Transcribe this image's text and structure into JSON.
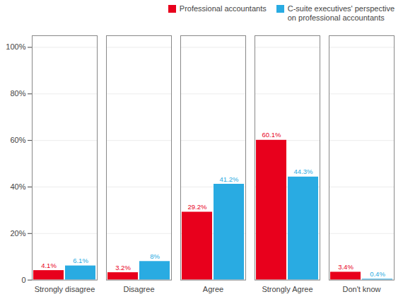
{
  "chart_data": {
    "type": "bar",
    "categories": [
      "Strongly disagree",
      "Disagree",
      "Agree",
      "Strongly Agree",
      "Don't know"
    ],
    "series": [
      {
        "name": "Professional accountants",
        "color": "#e8001c",
        "values": [
          4.1,
          3.2,
          29.2,
          60.1,
          3.4
        ],
        "value_labels": [
          "4.1%",
          "3.2%",
          "29.2%",
          "60.1%",
          "3.4%"
        ]
      },
      {
        "name": "C-suite executives' perspective\non professional accountants",
        "color": "#29abe2",
        "values": [
          6.1,
          8.0,
          41.2,
          44.3,
          0.4
        ],
        "value_labels": [
          "6.1%",
          "8%",
          "41.2%",
          "44.3%",
          "0.4%"
        ]
      }
    ],
    "ylim": [
      0,
      105
    ],
    "yticks": [
      0,
      {
        "value": 20,
        "label": "20%"
      },
      {
        "value": 40,
        "label": "40%"
      },
      {
        "value": 60,
        "label": "60%"
      },
      {
        "value": 80,
        "label": "80%"
      },
      {
        "value": 100,
        "label": "100%"
      }
    ],
    "grid": true,
    "legend": "upper right",
    "data_labels": true
  }
}
